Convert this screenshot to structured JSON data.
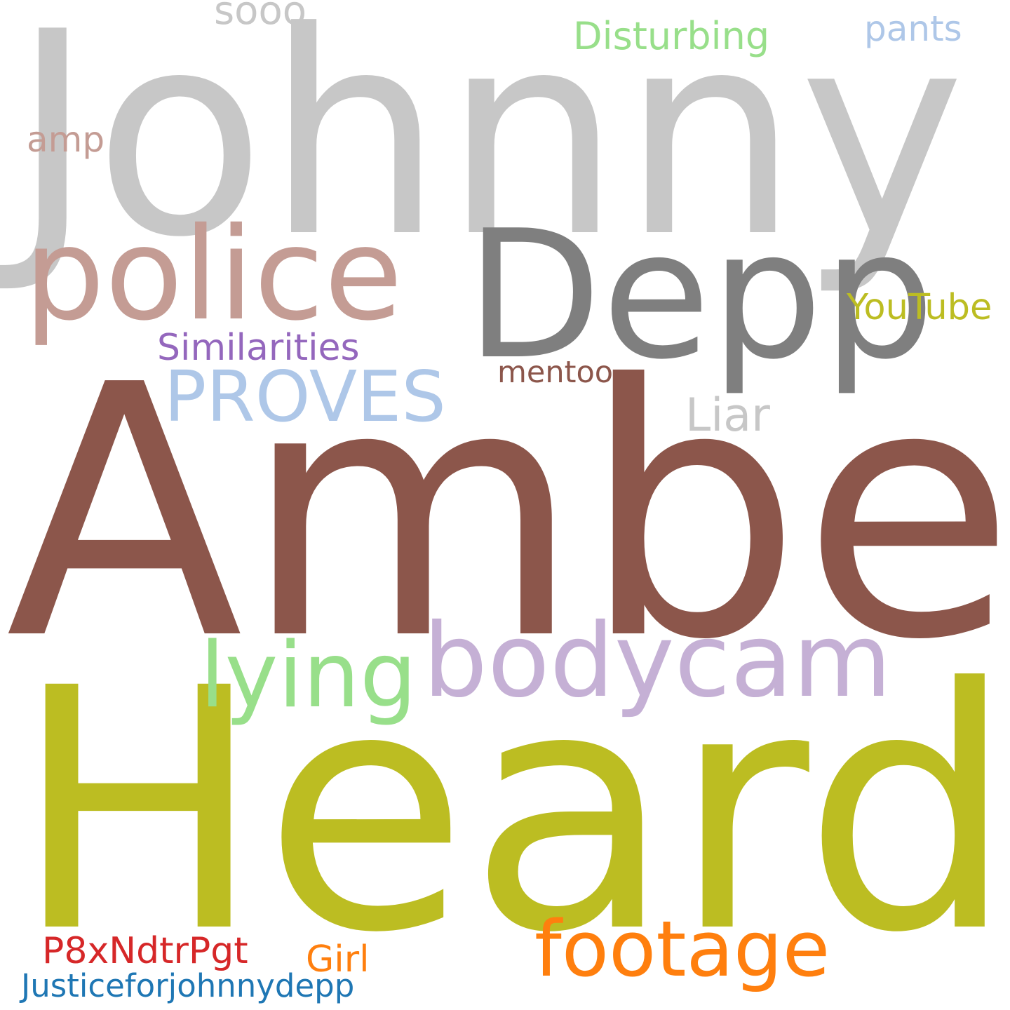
{
  "word_cloud": {
    "background": "#ffffff",
    "words": [
      {
        "text": "Johnny",
        "color": "#c7c7c7"
      },
      {
        "text": "Amber",
        "color": "#8c564b"
      },
      {
        "text": "Heard",
        "color": "#bcbd22"
      },
      {
        "text": "Depp",
        "color": "#7f7f7f"
      },
      {
        "text": "police",
        "color": "#c49c94"
      },
      {
        "text": "bodycam",
        "color": "#c5b0d5"
      },
      {
        "text": "lying",
        "color": "#98df8a"
      },
      {
        "text": "footage",
        "color": "#ff7f0e"
      },
      {
        "text": "PROVES",
        "color": "#aec7e8"
      },
      {
        "text": "Disturbing",
        "color": "#98df8a"
      },
      {
        "text": "pants",
        "color": "#aec7e8"
      },
      {
        "text": "sooo",
        "color": "#c7c7c7"
      },
      {
        "text": "amp",
        "color": "#c49c94"
      },
      {
        "text": "YouTube",
        "color": "#bcbd22"
      },
      {
        "text": "Similarities",
        "color": "#9467bd"
      },
      {
        "text": "mentoo",
        "color": "#8c564b"
      },
      {
        "text": "Liar",
        "color": "#c7c7c7"
      },
      {
        "text": "P8xNdtrPgt",
        "color": "#d62728"
      },
      {
        "text": "Girl",
        "color": "#ff7f0e"
      },
      {
        "text": "Justiceforjohnnydepp",
        "color": "#1f77b4"
      }
    ]
  }
}
